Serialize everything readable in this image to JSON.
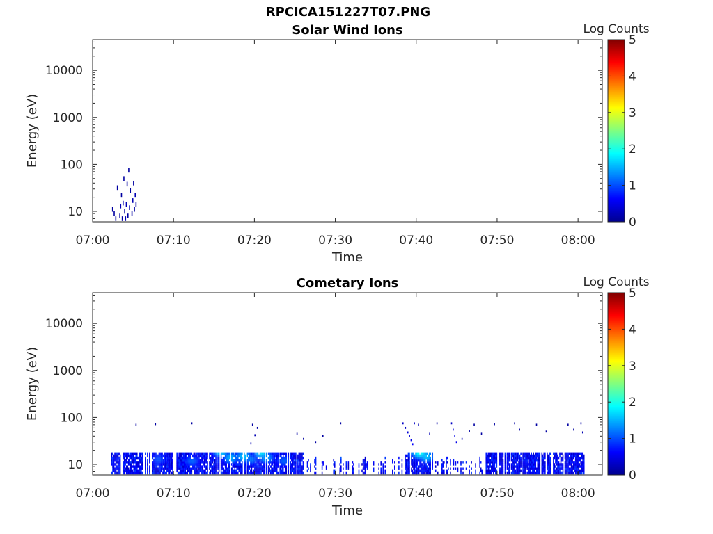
{
  "figure_title": "RPCICA151227T07.PNG",
  "colormap": [
    "#00008f",
    "#0000ff",
    "#0080ff",
    "#00ffff",
    "#80ff80",
    "#ffff00",
    "#ff8000",
    "#ff0000",
    "#800000"
  ],
  "chart_data": [
    {
      "type": "heatmap",
      "title": "Solar Wind Ions",
      "xlabel": "Time",
      "ylabel": "Energy (eV)",
      "x_tick_labels": [
        "07:00",
        "07:10",
        "07:20",
        "07:30",
        "07:40",
        "07:50",
        "08:00"
      ],
      "x_tick_minutes": [
        0,
        10,
        20,
        30,
        40,
        50,
        60
      ],
      "xlim_minutes": [
        0,
        63
      ],
      "y_scale": "log",
      "y_tick_labels": [
        "10",
        "100",
        "1000",
        "10000"
      ],
      "y_tick_values": [
        10,
        100,
        1000,
        10000
      ],
      "ylim": [
        6,
        45000
      ],
      "colorbar_label": "Log Counts",
      "colorbar_ticks": [
        "0",
        "1",
        "2",
        "3",
        "4",
        "5"
      ],
      "colorbar_range": [
        0,
        5
      ],
      "cells": [
        {
          "t": 2.4,
          "e": 11,
          "c": 0.1
        },
        {
          "t": 2.6,
          "e": 9,
          "c": 0.1
        },
        {
          "t": 2.8,
          "e": 7,
          "c": 0.1
        },
        {
          "t": 3.0,
          "e": 32,
          "c": 0.1
        },
        {
          "t": 3.3,
          "e": 8,
          "c": 0.1
        },
        {
          "t": 3.4,
          "e": 13,
          "c": 0.2
        },
        {
          "t": 3.5,
          "e": 22,
          "c": 0.1
        },
        {
          "t": 3.6,
          "e": 7,
          "c": 0.1
        },
        {
          "t": 3.7,
          "e": 15,
          "c": 0.2
        },
        {
          "t": 3.8,
          "e": 50,
          "c": 0.1
        },
        {
          "t": 3.9,
          "e": 10,
          "c": 0.1
        },
        {
          "t": 4.0,
          "e": 7,
          "c": 0.2
        },
        {
          "t": 4.1,
          "e": 14,
          "c": 0.2
        },
        {
          "t": 4.2,
          "e": 38,
          "c": 0.1
        },
        {
          "t": 4.3,
          "e": 8,
          "c": 0.1
        },
        {
          "t": 4.4,
          "e": 75,
          "c": 0.1
        },
        {
          "t": 4.5,
          "e": 12,
          "c": 0.2
        },
        {
          "t": 4.6,
          "e": 28,
          "c": 0.1
        },
        {
          "t": 4.8,
          "e": 9,
          "c": 0.1
        },
        {
          "t": 4.9,
          "e": 17,
          "c": 0.2
        },
        {
          "t": 5.0,
          "e": 40,
          "c": 0.1
        },
        {
          "t": 5.1,
          "e": 11,
          "c": 0.1
        },
        {
          "t": 5.2,
          "e": 22,
          "c": 0.2
        },
        {
          "t": 5.3,
          "e": 14,
          "c": 0.1
        }
      ]
    },
    {
      "type": "heatmap",
      "title": "Cometary Ions",
      "xlabel": "Time",
      "ylabel": "Energy (eV)",
      "x_tick_labels": [
        "07:00",
        "07:10",
        "07:20",
        "07:30",
        "07:40",
        "07:50",
        "08:00"
      ],
      "x_tick_minutes": [
        0,
        10,
        20,
        30,
        40,
        50,
        60
      ],
      "xlim_minutes": [
        0,
        63
      ],
      "y_scale": "log",
      "y_tick_labels": [
        "10",
        "100",
        "1000",
        "10000"
      ],
      "y_tick_values": [
        10,
        100,
        1000,
        10000
      ],
      "ylim": [
        6,
        45000
      ],
      "colorbar_label": "Log Counts",
      "colorbar_ticks": [
        "0",
        "1",
        "2",
        "3",
        "4",
        "5"
      ],
      "colorbar_range": [
        0,
        5
      ],
      "band": {
        "t_start": 2.3,
        "t_end": 60.8,
        "e_low": 6.2,
        "e_high": 18
      },
      "hotspots": [
        {
          "t": 15.8,
          "e": 20,
          "c": 1.8
        },
        {
          "t": 17.0,
          "e": 14,
          "c": 1.5
        },
        {
          "t": 18.6,
          "e": 15,
          "c": 1.6
        },
        {
          "t": 19.5,
          "e": 13,
          "c": 1.2
        },
        {
          "t": 20.8,
          "e": 18,
          "c": 1.7
        },
        {
          "t": 21.4,
          "e": 14,
          "c": 1.4
        },
        {
          "t": 23.6,
          "e": 12,
          "c": 1.1
        },
        {
          "t": 31.0,
          "e": 16,
          "c": 1.3
        },
        {
          "t": 39.8,
          "e": 21,
          "c": 1.8
        },
        {
          "t": 40.4,
          "e": 18,
          "c": 1.9
        },
        {
          "t": 41.2,
          "e": 15,
          "c": 1.6
        },
        {
          "t": 12.2,
          "e": 12,
          "c": 1.1
        },
        {
          "t": 8.1,
          "e": 13,
          "c": 1.0
        },
        {
          "t": 27.1,
          "e": 14,
          "c": 0.9
        }
      ],
      "scatter": [
        {
          "t": 5.3,
          "e": 70,
          "c": 0.1
        },
        {
          "t": 7.7,
          "e": 72,
          "c": 0.1
        },
        {
          "t": 12.2,
          "e": 75,
          "c": 0.1
        },
        {
          "t": 19.7,
          "e": 70,
          "c": 0.1
        },
        {
          "t": 20.3,
          "e": 60,
          "c": 0.1
        },
        {
          "t": 20.0,
          "e": 42,
          "c": 0.2
        },
        {
          "t": 19.5,
          "e": 28,
          "c": 0.2
        },
        {
          "t": 25.2,
          "e": 45,
          "c": 0.1
        },
        {
          "t": 26.0,
          "e": 35,
          "c": 0.1
        },
        {
          "t": 27.5,
          "e": 30,
          "c": 0.1
        },
        {
          "t": 28.4,
          "e": 40,
          "c": 0.1
        },
        {
          "t": 30.6,
          "e": 75,
          "c": 0.1
        },
        {
          "t": 38.3,
          "e": 75,
          "c": 0.3
        },
        {
          "t": 38.6,
          "e": 60,
          "c": 0.3
        },
        {
          "t": 38.9,
          "e": 48,
          "c": 0.4
        },
        {
          "t": 39.1,
          "e": 40,
          "c": 0.4
        },
        {
          "t": 39.3,
          "e": 33,
          "c": 0.5
        },
        {
          "t": 39.5,
          "e": 27,
          "c": 0.6
        },
        {
          "t": 39.7,
          "e": 75,
          "c": 0.3
        },
        {
          "t": 40.2,
          "e": 70,
          "c": 0.2
        },
        {
          "t": 42.5,
          "e": 75,
          "c": 0.1
        },
        {
          "t": 44.3,
          "e": 75,
          "c": 0.3
        },
        {
          "t": 44.5,
          "e": 55,
          "c": 0.4
        },
        {
          "t": 44.7,
          "e": 40,
          "c": 0.5
        },
        {
          "t": 44.9,
          "e": 30,
          "c": 0.5
        },
        {
          "t": 45.6,
          "e": 35,
          "c": 0.2
        },
        {
          "t": 47.1,
          "e": 70,
          "c": 0.1
        },
        {
          "t": 48.0,
          "e": 45,
          "c": 0.1
        },
        {
          "t": 49.6,
          "e": 72,
          "c": 0.1
        },
        {
          "t": 52.1,
          "e": 75,
          "c": 0.1
        },
        {
          "t": 52.7,
          "e": 55,
          "c": 0.1
        },
        {
          "t": 54.8,
          "e": 70,
          "c": 0.1
        },
        {
          "t": 56.0,
          "e": 50,
          "c": 0.1
        },
        {
          "t": 58.7,
          "e": 70,
          "c": 0.1
        },
        {
          "t": 59.4,
          "e": 55,
          "c": 0.1
        },
        {
          "t": 60.3,
          "e": 75,
          "c": 0.1
        },
        {
          "t": 60.5,
          "e": 48,
          "c": 0.2
        },
        {
          "t": 46.5,
          "e": 52,
          "c": 0.1
        },
        {
          "t": 41.6,
          "e": 45,
          "c": 0.2
        }
      ]
    }
  ]
}
